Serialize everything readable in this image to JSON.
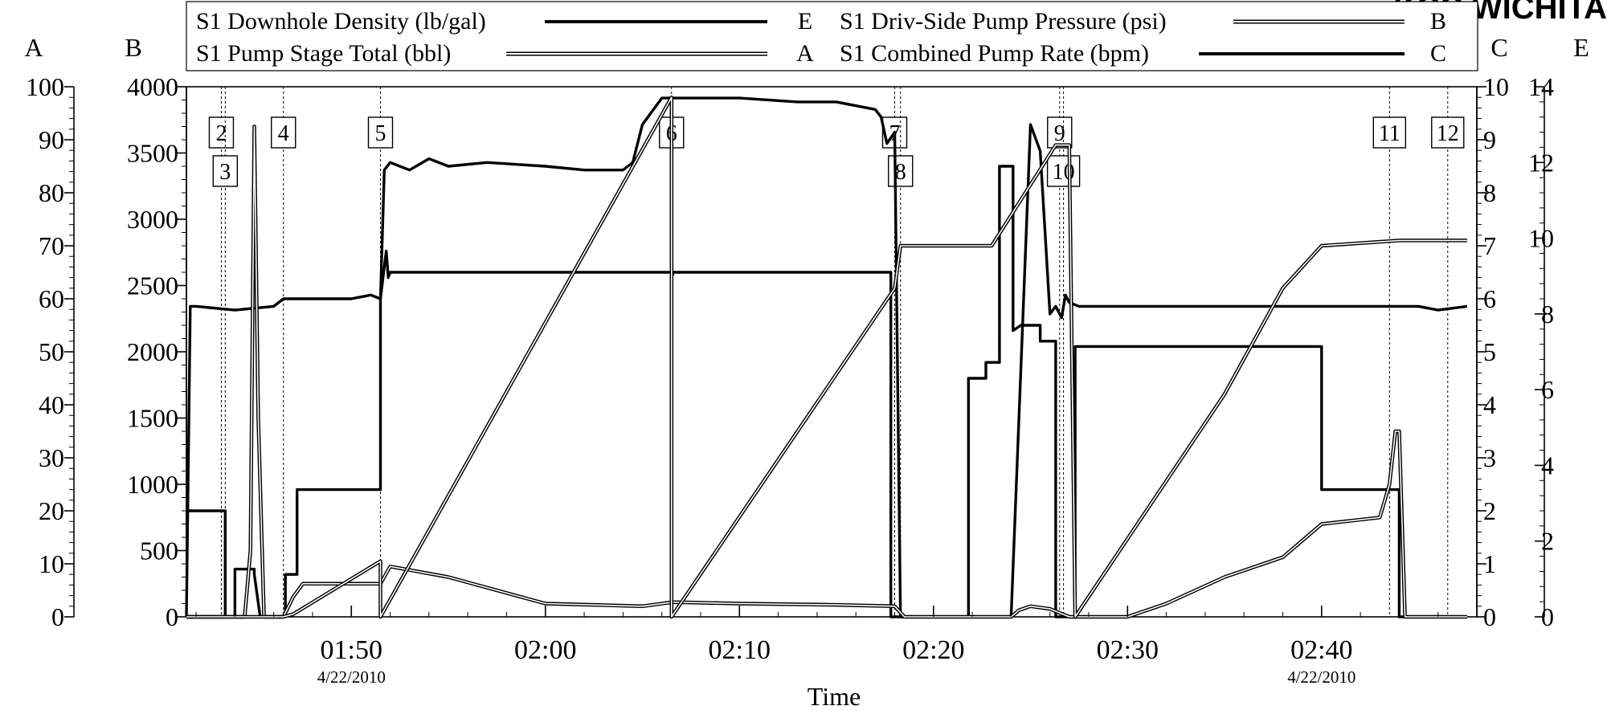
{
  "corner_text": "KCC WICHITA",
  "chart_data": {
    "type": "line",
    "title": "",
    "xlabel": "Time",
    "x_range_minutes": [
      101.5,
      168
    ],
    "x_ticks": [
      {
        "t": 110,
        "label": "01:50",
        "date": "4/22/2010"
      },
      {
        "t": 120,
        "label": "02:00",
        "date": ""
      },
      {
        "t": 130,
        "label": "02:10",
        "date": ""
      },
      {
        "t": 140,
        "label": "02:20",
        "date": ""
      },
      {
        "t": 150,
        "label": "02:30",
        "date": ""
      },
      {
        "t": 160,
        "label": "02:40",
        "date": "4/22/2010"
      }
    ],
    "axes": {
      "A": {
        "label": "A",
        "range": [
          0,
          100
        ],
        "ticks": [
          "0",
          "10",
          "20",
          "30",
          "40",
          "50",
          "60",
          "70",
          "80",
          "90",
          "100"
        ],
        "side": "left-outer"
      },
      "B": {
        "label": "B",
        "range": [
          0,
          4000
        ],
        "ticks": [
          "0",
          "500",
          "1000",
          "1500",
          "2000",
          "2500",
          "3000",
          "3500",
          "4000"
        ],
        "side": "left-inner"
      },
      "C": {
        "label": "C",
        "range": [
          0,
          10
        ],
        "ticks": [
          "0",
          "1",
          "2",
          "3",
          "4",
          "5",
          "6",
          "7",
          "8",
          "9",
          "10"
        ],
        "side": "right-inner"
      },
      "E": {
        "label": "E",
        "range": [
          0,
          14
        ],
        "ticks": [
          "0",
          "2",
          "4",
          "6",
          "8",
          "10",
          "12",
          "14"
        ],
        "side": "right-outer"
      }
    },
    "legend": [
      {
        "name": "S1 Downhole Density (lb/gal)",
        "axis": "E",
        "style": "thick"
      },
      {
        "name": "S1 Driv-Side Pump Pressure (psi)",
        "axis": "B",
        "style": "double"
      },
      {
        "name": "S1 Pump Stage Total (bbl)",
        "axis": "A",
        "style": "double"
      },
      {
        "name": "S1 Combined Pump Rate (bpm)",
        "axis": "C",
        "style": "thick"
      }
    ],
    "events": [
      {
        "label": "2",
        "t": 103.3,
        "row": 0
      },
      {
        "label": "3",
        "t": 103.5,
        "row": 1
      },
      {
        "label": "4",
        "t": 106.5,
        "row": 0
      },
      {
        "label": "5",
        "t": 111.5,
        "row": 0
      },
      {
        "label": "6",
        "t": 126.5,
        "row": 0
      },
      {
        "label": "7",
        "t": 138,
        "row": 0
      },
      {
        "label": "8",
        "t": 138.3,
        "row": 1
      },
      {
        "label": "9",
        "t": 146.5,
        "row": 0
      },
      {
        "label": "10",
        "t": 146.7,
        "row": 1
      },
      {
        "label": "11",
        "t": 163.5,
        "row": 0
      },
      {
        "label": "12",
        "t": 166.5,
        "row": 0
      }
    ],
    "series": [
      {
        "name": "S1 Downhole Density (lb/gal)",
        "axis": "E",
        "style": "thick",
        "x": [
          101.5,
          101.7,
          102,
          104,
          106,
          106.5,
          107,
          108,
          110,
          111,
          111.5,
          111.7,
          112,
          113,
          114,
          115,
          117,
          120,
          122,
          124,
          124.5,
          125,
          126,
          127,
          130,
          133,
          135,
          137,
          137.3,
          137.6,
          138,
          138.3,
          140,
          142,
          144,
          145,
          145.5,
          146,
          146.3,
          146.6,
          146.8,
          147,
          147.5,
          148,
          150,
          155,
          160,
          163,
          165,
          166,
          167.5
        ],
        "y": [
          0,
          8.2,
          8.2,
          8.1,
          8.2,
          8.4,
          8.4,
          8.4,
          8.4,
          8.5,
          8.4,
          11.8,
          12,
          11.8,
          12.1,
          11.9,
          12,
          11.9,
          11.8,
          11.8,
          12.0,
          13,
          13.7,
          13.7,
          13.7,
          13.6,
          13.6,
          13.4,
          13.2,
          12.5,
          12.8,
          0,
          0,
          0,
          0,
          13,
          12.3,
          8,
          8.2,
          7.9,
          8.5,
          8.3,
          8.2,
          8.2,
          8.2,
          8.2,
          8.2,
          8.2,
          8.2,
          8.1,
          8.2
        ]
      },
      {
        "name": "S1 Combined Pump Rate (bpm)",
        "axis": "C",
        "style": "thick",
        "x": [
          101.5,
          102.8,
          102.8,
          103.5,
          103.5,
          104,
          104,
          105,
          105,
          105.3,
          105.5,
          105.5,
          106.6,
          106.6,
          107.2,
          107.2,
          111.5,
          111.5,
          111.8,
          111.9,
          112,
          126.5,
          126.5,
          126.6,
          137.8,
          137.8,
          138.5,
          138.5,
          141.5,
          141.5,
          141.8,
          141.8,
          142.7,
          142.7,
          143.4,
          143.4,
          144.1,
          144.1,
          144.5,
          144.8,
          145.5,
          145.5,
          146.3,
          146.3,
          147.3,
          147.3,
          160,
          160,
          164,
          164,
          167.5
        ],
        "y": [
          2,
          2,
          2,
          2,
          0,
          0,
          0.9,
          0.9,
          0.8,
          0,
          0,
          0,
          0,
          0.8,
          0.8,
          2.4,
          2.4,
          6.0,
          6.9,
          6.4,
          6.5,
          6.5,
          6.4,
          6.5,
          6.5,
          0,
          0,
          0,
          0,
          0,
          0,
          4.5,
          4.5,
          4.8,
          4.8,
          8.5,
          8.5,
          5.4,
          5.5,
          5.5,
          5.5,
          5.2,
          5.2,
          0,
          0,
          5.1,
          5.1,
          2.4,
          2.4,
          0,
          0
        ]
      },
      {
        "name": "S1 Driv-Side Pump Pressure (psi)",
        "axis": "B",
        "style": "double",
        "x": [
          101.5,
          104,
          104.5,
          104.8,
          105,
          105.2,
          105.5,
          106.5,
          107,
          107.5,
          108,
          110,
          111.5,
          112,
          115,
          120,
          125,
          126.5,
          127,
          130,
          135,
          138,
          138.5,
          141,
          143,
          144,
          144.4,
          145,
          146,
          147,
          148,
          150,
          152,
          155,
          158,
          160,
          163,
          163.5,
          163.8,
          164,
          164.3,
          167.5
        ],
        "y": [
          0,
          0,
          0,
          500,
          3700,
          1500,
          0,
          0,
          150,
          250,
          250,
          250,
          250,
          380,
          300,
          100,
          80,
          110,
          110,
          100,
          90,
          80,
          0,
          0,
          0,
          0,
          50,
          80,
          60,
          0,
          0,
          0,
          100,
          300,
          450,
          700,
          750,
          1000,
          1400,
          1400,
          0,
          0
        ]
      },
      {
        "name": "S1 Pump Stage Total (bbl)",
        "axis": "A",
        "style": "double",
        "x": [
          101.5,
          104,
          106.5,
          107,
          111.5,
          111.5,
          126.5,
          126.5,
          138,
          138.3,
          140.5,
          143,
          146.3,
          147,
          147.3,
          155,
          158,
          160,
          164,
          167.5
        ],
        "y": [
          0,
          0,
          0,
          0.5,
          10.5,
          0,
          98,
          0,
          62,
          70,
          70,
          70,
          89,
          89,
          0,
          42,
          62,
          70,
          71,
          71
        ]
      }
    ]
  }
}
